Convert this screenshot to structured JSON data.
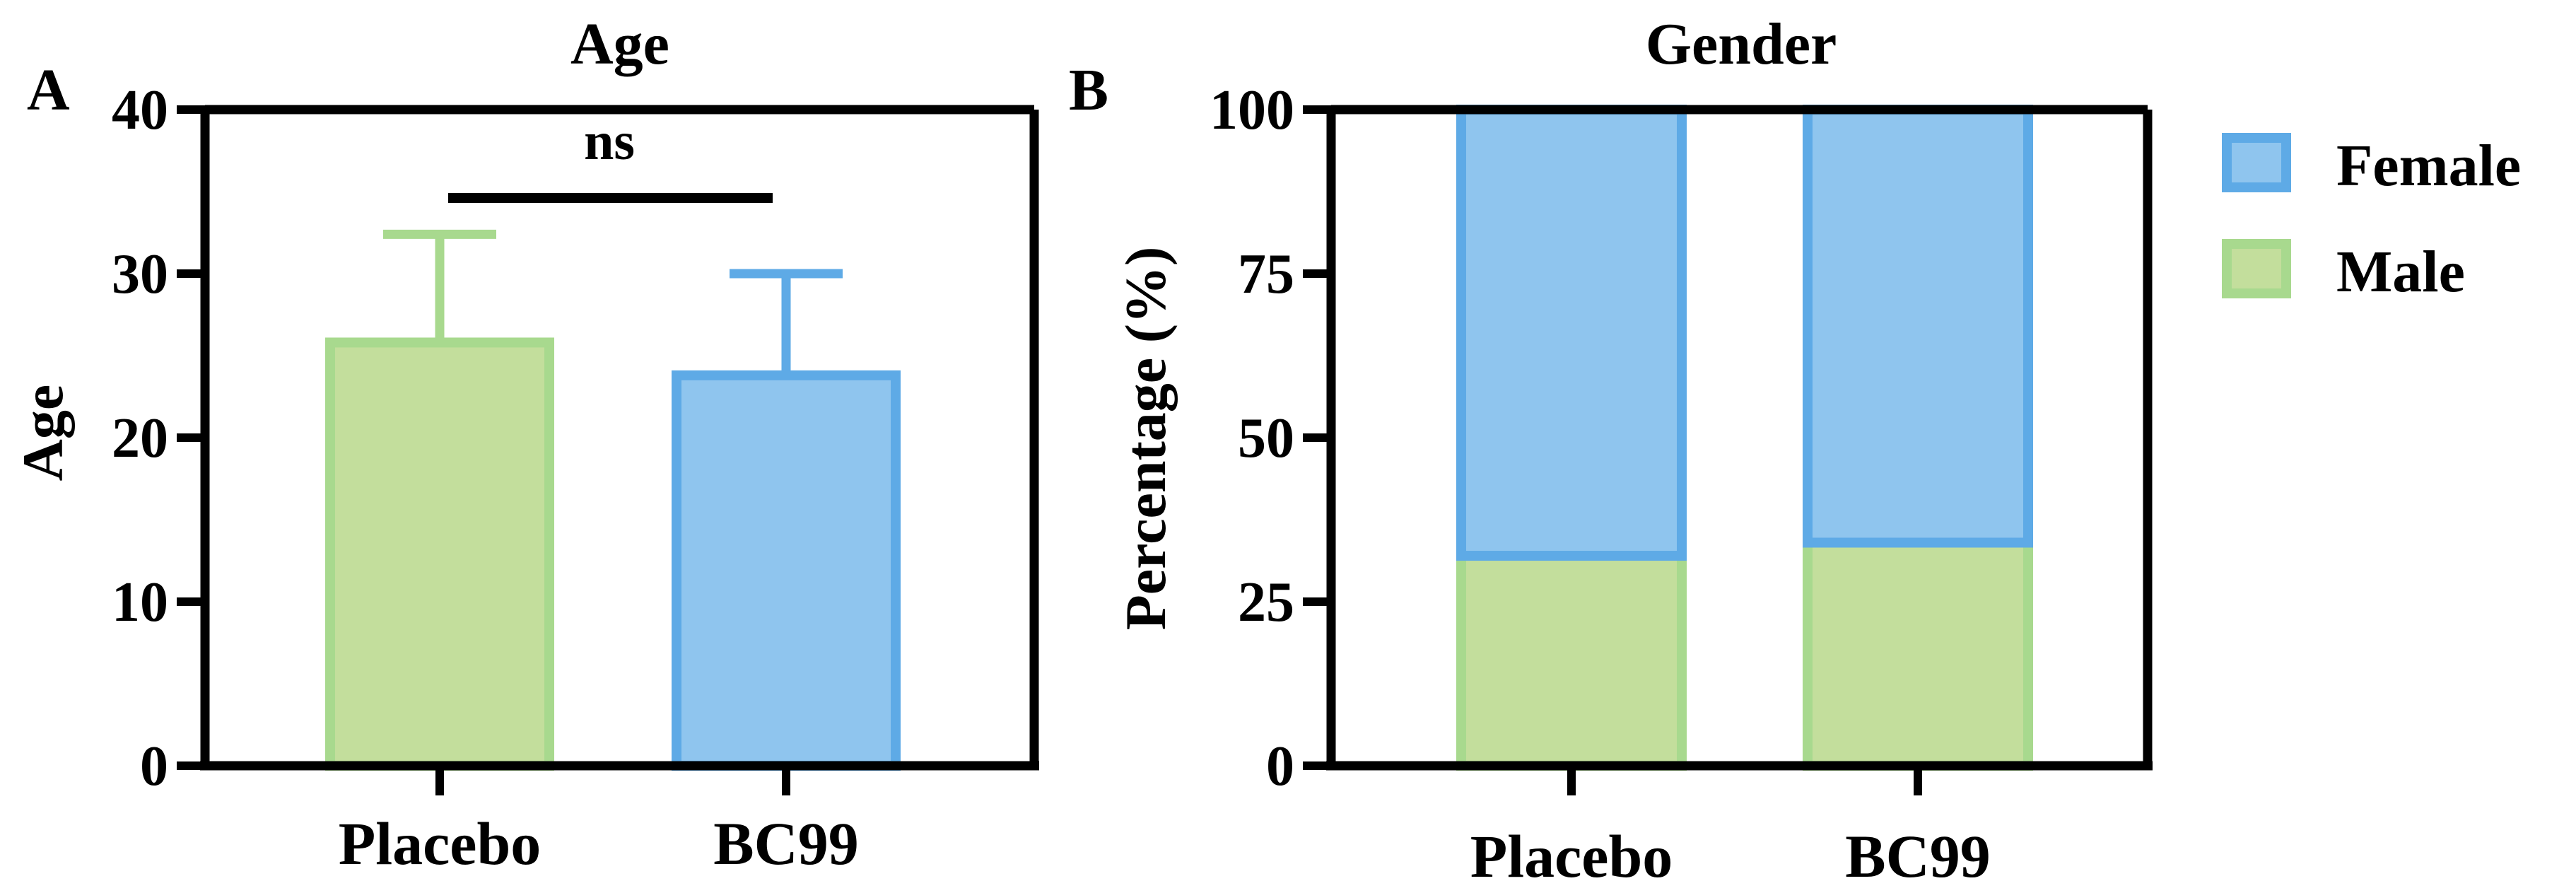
{
  "chart_data": [
    {
      "panel": "A",
      "type": "bar",
      "title": "Age",
      "xlabel": "",
      "ylabel": "Age",
      "ylim": [
        0,
        40
      ],
      "yticks": [
        0,
        10,
        20,
        30,
        40
      ],
      "categories": [
        "Placebo",
        "BC99"
      ],
      "values": [
        25.8,
        23.8
      ],
      "errors": [
        6.6,
        6.2
      ],
      "bar_colors": [
        "#c3de9c",
        "#8fc5ee"
      ],
      "bar_edge_colors": [
        "#a8d98e",
        "#5eaae6"
      ],
      "significance": {
        "label": "ns",
        "between": [
          "Placebo",
          "BC99"
        ]
      }
    },
    {
      "panel": "B",
      "type": "bar",
      "stacked": true,
      "title": "Gender",
      "xlabel": "",
      "ylabel": "Percentage (%)",
      "ylim": [
        0,
        100
      ],
      "yticks": [
        0,
        25,
        50,
        75,
        100
      ],
      "categories": [
        "Placebo",
        "BC99"
      ],
      "series": [
        {
          "name": "Male",
          "values": [
            32,
            34
          ],
          "color": "#c3de9c",
          "edge": "#a8d98e"
        },
        {
          "name": "Female",
          "values": [
            68,
            66
          ],
          "color": "#8fc5ee",
          "edge": "#5eaae6"
        }
      ],
      "legend": {
        "position": "right",
        "entries": [
          "Female",
          "Male"
        ]
      }
    }
  ]
}
